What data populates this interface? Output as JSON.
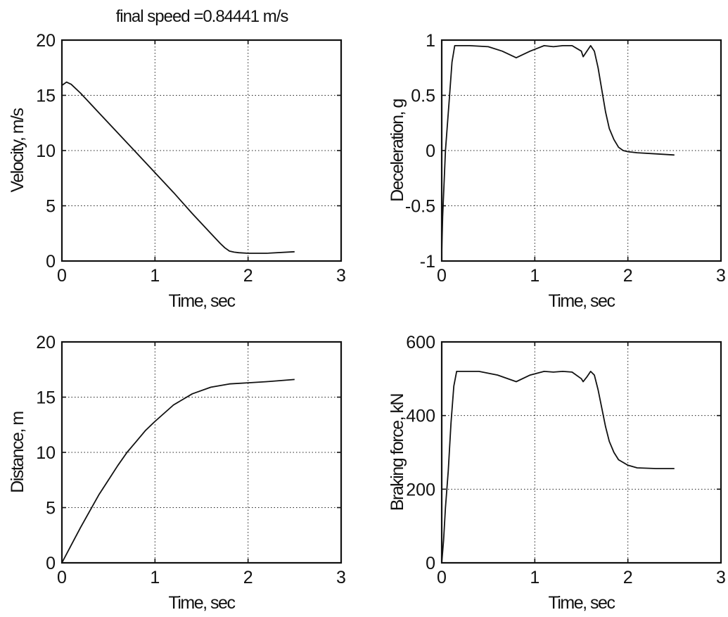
{
  "figure": {
    "title": "final speed =0.84441 m/s"
  },
  "chart_data": [
    {
      "id": "velocity",
      "type": "line",
      "title": "final speed =0.84441 m/s",
      "xlabel": "Time, sec",
      "ylabel": "Velocity, m/s",
      "xlim": [
        0,
        3
      ],
      "ylim": [
        0,
        20
      ],
      "xticks": [
        0,
        1,
        2,
        3
      ],
      "yticks": [
        0,
        5,
        10,
        15,
        20
      ],
      "grid": true,
      "series": [
        {
          "x": [
            0,
            0.05,
            0.1,
            0.2,
            0.4,
            0.6,
            0.8,
            1.0,
            1.2,
            1.4,
            1.6,
            1.7,
            1.75,
            1.8,
            1.85,
            1.9,
            2.0,
            2.2,
            2.5
          ],
          "y": [
            15.9,
            16.2,
            16.0,
            15.2,
            13.4,
            11.6,
            9.8,
            8.0,
            6.2,
            4.3,
            2.5,
            1.6,
            1.2,
            0.9,
            0.8,
            0.75,
            0.7,
            0.7,
            0.84
          ]
        }
      ]
    },
    {
      "id": "deceleration",
      "type": "line",
      "xlabel": "Time, sec",
      "ylabel": "Deceleration, g",
      "xlim": [
        0,
        3
      ],
      "ylim": [
        -1,
        1
      ],
      "xticks": [
        0,
        1,
        2,
        3
      ],
      "yticks": [
        -1,
        -0.5,
        0,
        0.5,
        1
      ],
      "grid": true,
      "series": [
        {
          "x": [
            0,
            0.01,
            0.04,
            0.08,
            0.11,
            0.14,
            0.2,
            0.3,
            0.5,
            0.65,
            0.8,
            0.95,
            1.1,
            1.2,
            1.3,
            1.4,
            1.5,
            1.52,
            1.56,
            1.6,
            1.64,
            1.68,
            1.72,
            1.76,
            1.8,
            1.85,
            1.9,
            1.95,
            2.0,
            2.1,
            2.3,
            2.5
          ],
          "y": [
            -0.92,
            -0.6,
            0.0,
            0.45,
            0.8,
            0.95,
            0.95,
            0.95,
            0.94,
            0.9,
            0.84,
            0.9,
            0.95,
            0.94,
            0.95,
            0.95,
            0.9,
            0.85,
            0.9,
            0.95,
            0.9,
            0.75,
            0.55,
            0.35,
            0.2,
            0.1,
            0.03,
            0.0,
            -0.01,
            -0.02,
            -0.03,
            -0.04
          ]
        }
      ]
    },
    {
      "id": "distance",
      "type": "line",
      "xlabel": "Time, sec",
      "ylabel": "Distance, m",
      "xlim": [
        0,
        3
      ],
      "ylim": [
        0,
        20
      ],
      "xticks": [
        0,
        1,
        2,
        3
      ],
      "yticks": [
        0,
        5,
        10,
        15,
        20
      ],
      "grid": true,
      "series": [
        {
          "x": [
            0,
            0.1,
            0.2,
            0.3,
            0.4,
            0.5,
            0.6,
            0.7,
            0.8,
            0.9,
            1.0,
            1.2,
            1.4,
            1.6,
            1.8,
            2.0,
            2.2,
            2.5
          ],
          "y": [
            0,
            1.6,
            3.2,
            4.7,
            6.2,
            7.5,
            8.8,
            10.0,
            11.0,
            12.0,
            12.8,
            14.3,
            15.3,
            15.9,
            16.2,
            16.3,
            16.4,
            16.6
          ]
        }
      ]
    },
    {
      "id": "braking-force",
      "type": "line",
      "xlabel": "Time, sec",
      "ylabel": "Braking force, kN",
      "xlim": [
        0,
        3
      ],
      "ylim": [
        0,
        600
      ],
      "xticks": [
        0,
        1,
        2,
        3
      ],
      "yticks": [
        0,
        200,
        400,
        600
      ],
      "grid": true,
      "series": [
        {
          "x": [
            0,
            0.02,
            0.04,
            0.07,
            0.1,
            0.13,
            0.16,
            0.2,
            0.4,
            0.6,
            0.8,
            0.95,
            1.1,
            1.2,
            1.3,
            1.4,
            1.5,
            1.52,
            1.56,
            1.6,
            1.64,
            1.68,
            1.72,
            1.76,
            1.8,
            1.85,
            1.9,
            2.0,
            2.1,
            2.3,
            2.5
          ],
          "y": [
            0,
            60,
            150,
            250,
            380,
            480,
            520,
            520,
            520,
            510,
            492,
            510,
            520,
            518,
            520,
            518,
            500,
            492,
            505,
            520,
            510,
            470,
            420,
            370,
            330,
            300,
            280,
            265,
            258,
            256,
            256
          ]
        }
      ]
    }
  ]
}
